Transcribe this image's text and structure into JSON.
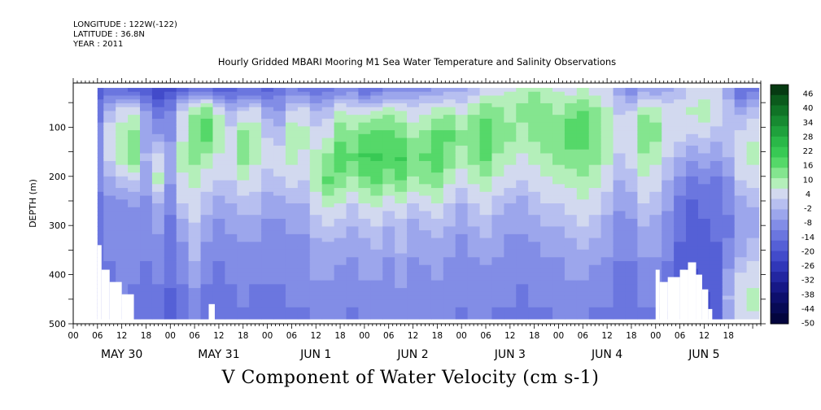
{
  "header": {
    "longitude": "LONGITUDE : 122W(-122)",
    "latitude": "LATITUDE : 36.8N",
    "year": "YEAR : 2011"
  },
  "chart_data": {
    "type": "heatmap",
    "title": "Hourly Gridded MBARI Mooring M1 Sea Water Temperature and Salinity Observations",
    "xlabel": "V Component of Water Velocity (cm s-1)",
    "ylabel": "DEPTH (m)",
    "y_ticks": [
      100,
      200,
      300,
      400,
      500
    ],
    "ylim": [
      500,
      10
    ],
    "data_depth_range": [
      20,
      490
    ],
    "x_hour_ticks": [
      "00",
      "06",
      "12",
      "18",
      "00",
      "06",
      "12",
      "18",
      "00",
      "06",
      "12",
      "18",
      "00",
      "06",
      "12",
      "18",
      "00",
      "06",
      "12",
      "18",
      "00",
      "06",
      "12",
      "18",
      "00",
      "06",
      "12",
      "18"
    ],
    "x_day_labels": [
      "MAY 30",
      "MAY 31",
      "JUN  1",
      "JUN  2",
      "JUN  3",
      "JUN  4",
      "JUN  5"
    ],
    "x_hours_total": 168,
    "colorbar": {
      "labels": [
        46,
        40,
        34,
        28,
        22,
        16,
        10,
        4,
        -2,
        -8,
        -14,
        -20,
        -26,
        -32,
        -38,
        -44,
        -50
      ],
      "vmin": -50,
      "vmax": 50,
      "colors_top_to_bottom": [
        "#063a12",
        "#0b5a1c",
        "#107326",
        "#178a31",
        "#1fa13c",
        "#2ab848",
        "#38c954",
        "#55d869",
        "#84e58f",
        "#b4efba",
        "#d2d9ef",
        "#b7bff0",
        "#9ca6ec",
        "#828de6",
        "#6b76df",
        "#5560d6",
        "#424bca",
        "#3037b8",
        "#2226a0",
        "#161886",
        "#0d0f6c",
        "#070a55",
        "#03053e"
      ]
    },
    "columns": [
      {
        "h": 6,
        "v": [
          -18,
          -12,
          -10,
          -8,
          -10,
          -12,
          -12,
          -12,
          -12,
          -12,
          -12
        ]
      },
      {
        "h": 9,
        "v": [
          -14,
          -2,
          6,
          4,
          -4,
          -8,
          -10,
          -10,
          -12,
          -14,
          -14
        ]
      },
      {
        "h": 12,
        "v": [
          -16,
          4,
          10,
          10,
          0,
          -8,
          -10,
          -8,
          -8,
          -10,
          -12
        ]
      },
      {
        "h": 15,
        "v": [
          -18,
          6,
          12,
          14,
          2,
          -6,
          -10,
          -8,
          -10,
          -12,
          -12
        ]
      },
      {
        "h": 18,
        "v": [
          -20,
          -6,
          -4,
          -2,
          -4,
          -8,
          -10,
          -10,
          -12,
          -14,
          -14
        ]
      },
      {
        "h": 21,
        "v": [
          -24,
          -14,
          -6,
          4,
          8,
          -2,
          -6,
          -8,
          -10,
          -12,
          -14
        ]
      },
      {
        "h": 24,
        "v": [
          -22,
          -10,
          -8,
          -4,
          -6,
          -10,
          -12,
          -12,
          -14,
          -16,
          -16
        ]
      },
      {
        "h": 27,
        "v": [
          -18,
          4,
          6,
          8,
          6,
          2,
          -4,
          -8,
          -10,
          -12,
          -14
        ]
      },
      {
        "h": 30,
        "v": [
          -14,
          10,
          14,
          12,
          8,
          4,
          2,
          0,
          -4,
          -8,
          -10
        ]
      },
      {
        "h": 33,
        "v": [
          -14,
          14,
          18,
          10,
          4,
          0,
          -4,
          -8,
          -10,
          -12,
          -12
        ]
      },
      {
        "h": 36,
        "v": [
          -18,
          6,
          10,
          6,
          2,
          -4,
          -8,
          -10,
          -12,
          -12,
          -14
        ]
      },
      {
        "h": 39,
        "v": [
          -18,
          -2,
          4,
          6,
          2,
          -2,
          -6,
          -8,
          -10,
          -12,
          -12
        ]
      },
      {
        "h": 42,
        "v": [
          -16,
          2,
          12,
          14,
          6,
          0,
          -4,
          -8,
          -10,
          -10,
          -12
        ]
      },
      {
        "h": 45,
        "v": [
          -16,
          4,
          10,
          8,
          4,
          0,
          -4,
          -8,
          -10,
          -12,
          -12
        ]
      },
      {
        "h": 48,
        "v": [
          -18,
          -4,
          2,
          4,
          0,
          -4,
          -8,
          -8,
          -10,
          -12,
          -14
        ]
      },
      {
        "h": 51,
        "v": [
          -14,
          -6,
          0,
          4,
          2,
          -4,
          -8,
          -10,
          -10,
          -12,
          -12
        ]
      },
      {
        "h": 54,
        "v": [
          -12,
          2,
          10,
          8,
          4,
          -2,
          -6,
          -8,
          -10,
          -10,
          -12
        ]
      },
      {
        "h": 57,
        "v": [
          -14,
          4,
          8,
          6,
          2,
          -2,
          -6,
          -8,
          -8,
          -10,
          -12
        ]
      },
      {
        "h": 60,
        "v": [
          -16,
          -2,
          4,
          8,
          10,
          4,
          0,
          -4,
          -6,
          -8,
          -10
        ]
      },
      {
        "h": 63,
        "v": [
          -14,
          0,
          6,
          12,
          16,
          8,
          2,
          -4,
          -6,
          -8,
          -10
        ]
      },
      {
        "h": 66,
        "v": [
          -12,
          8,
          14,
          18,
          14,
          6,
          0,
          -4,
          -8,
          -8,
          -10
        ]
      },
      {
        "h": 69,
        "v": [
          -10,
          6,
          12,
          16,
          10,
          2,
          -2,
          -6,
          -8,
          -10,
          -12
        ]
      },
      {
        "h": 72,
        "v": [
          -16,
          4,
          16,
          20,
          14,
          6,
          0,
          -4,
          -6,
          -8,
          -10
        ]
      },
      {
        "h": 75,
        "v": [
          -14,
          6,
          18,
          20,
          16,
          8,
          2,
          -2,
          -6,
          -8,
          -10
        ]
      },
      {
        "h": 78,
        "v": [
          -12,
          10,
          16,
          18,
          12,
          4,
          -2,
          -6,
          -8,
          -8,
          -10
        ]
      },
      {
        "h": 81,
        "v": [
          -10,
          8,
          14,
          20,
          16,
          6,
          0,
          -2,
          -4,
          -8,
          -10
        ]
      },
      {
        "h": 84,
        "v": [
          -10,
          4,
          10,
          14,
          10,
          2,
          -4,
          -6,
          -8,
          -10,
          -10
        ]
      },
      {
        "h": 87,
        "v": [
          -8,
          6,
          12,
          16,
          12,
          4,
          -2,
          -4,
          -8,
          -8,
          -10
        ]
      },
      {
        "h": 90,
        "v": [
          -6,
          8,
          16,
          18,
          14,
          6,
          0,
          -4,
          -6,
          -8,
          -10
        ]
      },
      {
        "h": 93,
        "v": [
          -4,
          10,
          16,
          14,
          8,
          2,
          -2,
          -6,
          -8,
          -8,
          -10
        ]
      },
      {
        "h": 96,
        "v": [
          -4,
          6,
          12,
          10,
          4,
          -2,
          -6,
          -8,
          -10,
          -10,
          -12
        ]
      },
      {
        "h": 99,
        "v": [
          -2,
          10,
          14,
          12,
          8,
          2,
          -2,
          -6,
          -8,
          -10,
          -10
        ]
      },
      {
        "h": 102,
        "v": [
          2,
          14,
          18,
          16,
          10,
          4,
          0,
          -4,
          -8,
          -8,
          -10
        ]
      },
      {
        "h": 105,
        "v": [
          4,
          12,
          14,
          10,
          6,
          0,
          -4,
          -6,
          -8,
          -10,
          -12
        ]
      },
      {
        "h": 108,
        "v": [
          6,
          10,
          12,
          8,
          4,
          -2,
          -6,
          -8,
          -10,
          -10,
          -12
        ]
      },
      {
        "h": 111,
        "v": [
          8,
          12,
          10,
          6,
          2,
          -4,
          -6,
          -8,
          -10,
          -12,
          -12
        ]
      },
      {
        "h": 114,
        "v": [
          10,
          14,
          12,
          8,
          4,
          0,
          -4,
          -8,
          -10,
          -10,
          -12
        ]
      },
      {
        "h": 117,
        "v": [
          8,
          12,
          14,
          10,
          6,
          2,
          -2,
          -6,
          -8,
          -10,
          -12
        ]
      },
      {
        "h": 120,
        "v": [
          6,
          10,
          14,
          12,
          8,
          2,
          -2,
          -6,
          -8,
          -10,
          -10
        ]
      },
      {
        "h": 123,
        "v": [
          4,
          14,
          18,
          14,
          8,
          4,
          0,
          -4,
          -6,
          -8,
          -10
        ]
      },
      {
        "h": 126,
        "v": [
          6,
          16,
          18,
          14,
          10,
          6,
          2,
          -2,
          -6,
          -8,
          -10
        ]
      },
      {
        "h": 129,
        "v": [
          4,
          12,
          14,
          12,
          8,
          4,
          0,
          -4,
          -8,
          -10,
          -12
        ]
      },
      {
        "h": 132,
        "v": [
          2,
          8,
          10,
          8,
          4,
          0,
          -4,
          -6,
          -8,
          -10,
          -12
        ]
      },
      {
        "h": 135,
        "v": [
          -4,
          2,
          4,
          2,
          -2,
          -6,
          -8,
          -10,
          -12,
          -12,
          -14
        ]
      },
      {
        "h": 138,
        "v": [
          -10,
          2,
          6,
          4,
          0,
          -4,
          -8,
          -10,
          -12,
          -12,
          -14
        ]
      },
      {
        "h": 141,
        "v": [
          -6,
          10,
          14,
          10,
          6,
          2,
          -2,
          -6,
          -8,
          -10,
          -12
        ]
      },
      {
        "h": 144,
        "v": [
          -8,
          10,
          12,
          8,
          4,
          0,
          -4,
          -6,
          -8,
          -10,
          -12
        ]
      },
      {
        "h": 147,
        "v": [
          -4,
          6,
          6,
          2,
          -2,
          -6,
          -8,
          -10,
          -12,
          -14,
          -16
        ]
      },
      {
        "h": 150,
        "v": [
          -2,
          6,
          4,
          -2,
          -8,
          -12,
          -14,
          -16,
          -18,
          -18,
          -20
        ]
      },
      {
        "h": 153,
        "v": [
          2,
          8,
          2,
          -6,
          -12,
          -16,
          -18,
          -18,
          -20,
          -20,
          -22
        ]
      },
      {
        "h": 156,
        "v": [
          4,
          10,
          4,
          -4,
          -10,
          -14,
          -16,
          -18,
          -18,
          -20,
          -20
        ]
      },
      {
        "h": 159,
        "v": [
          2,
          6,
          0,
          -6,
          -12,
          -14,
          -14,
          -16,
          -18,
          -18,
          -18
        ]
      },
      {
        "h": 162,
        "v": [
          -6,
          2,
          2,
          -2,
          -8,
          -10,
          -12,
          -10,
          -6,
          -2,
          -4
        ]
      },
      {
        "h": 165,
        "v": [
          -16,
          -4,
          4,
          6,
          2,
          -4,
          -6,
          -4,
          2,
          6,
          4
        ]
      },
      {
        "h": 168,
        "v": [
          -12,
          0,
          6,
          8,
          4,
          -2,
          -4,
          0,
          4,
          8,
          6
        ]
      }
    ],
    "missing_blocks": [
      {
        "h0": 6,
        "h1": 7,
        "d0": 340,
        "d1": 500
      },
      {
        "h0": 7,
        "h1": 9,
        "d0": 390,
        "d1": 500
      },
      {
        "h0": 9,
        "h1": 12,
        "d0": 415,
        "d1": 500
      },
      {
        "h0": 12,
        "h1": 15,
        "d0": 440,
        "d1": 500
      },
      {
        "h0": 33.5,
        "h1": 35,
        "d0": 460,
        "d1": 500
      },
      {
        "h0": 144,
        "h1": 145,
        "d0": 390,
        "d1": 500
      },
      {
        "h0": 145,
        "h1": 147,
        "d0": 415,
        "d1": 500
      },
      {
        "h0": 147,
        "h1": 150,
        "d0": 405,
        "d1": 500
      },
      {
        "h0": 150,
        "h1": 152,
        "d0": 390,
        "d1": 500
      },
      {
        "h0": 152,
        "h1": 154,
        "d0": 375,
        "d1": 500
      },
      {
        "h0": 154,
        "h1": 155.5,
        "d0": 400,
        "d1": 500
      },
      {
        "h0": 155.5,
        "h1": 157,
        "d0": 430,
        "d1": 500
      },
      {
        "h0": 157,
        "h1": 158,
        "d0": 470,
        "d1": 500
      }
    ]
  }
}
